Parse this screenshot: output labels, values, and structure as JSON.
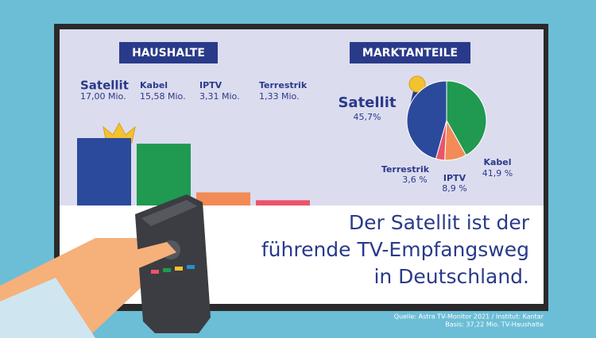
{
  "chart_data": [
    {
      "type": "bar",
      "title": "HAUSHALTE",
      "categories": [
        "Satellit",
        "Kabel",
        "IPTV",
        "Terrestrik"
      ],
      "values": [
        17.0,
        15.58,
        3.31,
        1.33
      ],
      "value_labels": [
        "17,00 Mio.",
        "15,58 Mio.",
        "3,31 Mio.",
        "1,33 Mio."
      ],
      "colors": [
        "#2b4a9c",
        "#1f9a50",
        "#f28b56",
        "#e9556b"
      ]
    },
    {
      "type": "pie",
      "title": "MARKTANTEILE",
      "categories": [
        "Satellit",
        "Kabel",
        "IPTV",
        "Terrestrik"
      ],
      "values": [
        45.7,
        41.9,
        8.9,
        3.6
      ],
      "value_labels": [
        "45,7%",
        "41,9 %",
        "8,9 %",
        "3,6 %"
      ],
      "colors": [
        "#2b4a9c",
        "#1f9a50",
        "#f28b56",
        "#e9556b"
      ]
    }
  ],
  "headline": [
    "Der Satellit ist der",
    "führende TV-Empfangsweg",
    "in Deutschland."
  ],
  "source": [
    "Quelle: Astra TV-Monitor 2021 / Institut: Kantar",
    "Basis: 37,22 Mio. TV-Haushalte"
  ]
}
